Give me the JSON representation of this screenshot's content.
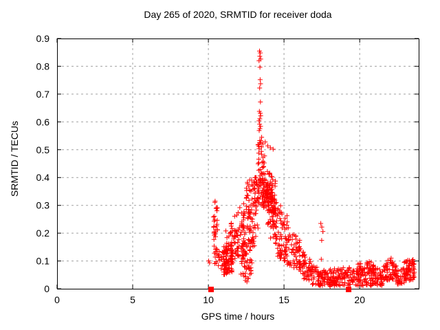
{
  "chart_data": {
    "type": "scatter",
    "title": "Day 265 of 2020, SRMTID for receiver doda",
    "xlabel": "GPS time / hours",
    "ylabel": "SRMTID / TECUs",
    "xlim": [
      0,
      23.9
    ],
    "ylim": [
      0,
      0.9
    ],
    "xticks": [
      0,
      5,
      10,
      15,
      20
    ],
    "xtick_labels": [
      "0",
      "5",
      "10",
      "15",
      "20"
    ],
    "yticks": [
      0,
      0.1,
      0.2,
      0.3,
      0.4,
      0.5,
      0.6,
      0.7,
      0.8,
      0.9
    ],
    "ytick_labels": [
      "0",
      "0.1",
      "0.2",
      "0.3",
      "0.4",
      "0.5",
      "0.6",
      "0.7",
      "0.8",
      "0.9"
    ],
    "grid": true,
    "grid_style": "dashed",
    "legend": "none",
    "marker": "plus",
    "marker_size": 7,
    "colors": {
      "points": "#ff0000",
      "grid": "#a0a0a0",
      "axis": "#000000",
      "background": "#ffffff"
    },
    "description": "Red plus-marker scatter: no data 0-10h; activity starts ~10.2h, dense band with peak column at ~13.4h reaching 0.855 TECUs, decaying to a low noise band 0.02-0.1 until ~23.6h. Filled red squares at zero at ~10.2h and ~19.3h.",
    "zero_markers": {
      "shape": "filled-square",
      "size": 8,
      "points": [
        [
          10.18,
          0
        ],
        [
          19.27,
          0
        ]
      ]
    },
    "points_explicit": [
      [
        10.02,
        0.1
      ],
      [
        10.08,
        0.093
      ],
      [
        13.38,
        0.855
      ],
      [
        13.43,
        0.848
      ],
      [
        13.4,
        0.836
      ],
      [
        13.46,
        0.826
      ],
      [
        13.35,
        0.82
      ],
      [
        13.41,
        0.797
      ],
      [
        13.42,
        0.752
      ],
      [
        13.45,
        0.737
      ],
      [
        13.39,
        0.722
      ],
      [
        13.44,
        0.672
      ],
      [
        13.37,
        0.638
      ],
      [
        13.43,
        0.631
      ],
      [
        13.46,
        0.622
      ],
      [
        13.4,
        0.611
      ],
      [
        13.35,
        0.604
      ],
      [
        13.39,
        0.592
      ],
      [
        13.45,
        0.584
      ],
      [
        13.41,
        0.576
      ],
      [
        13.36,
        0.569
      ],
      [
        13.52,
        0.545
      ],
      [
        13.48,
        0.532
      ],
      [
        13.6,
        0.521
      ],
      [
        13.33,
        0.512
      ],
      [
        13.76,
        0.528
      ],
      [
        13.92,
        0.514
      ],
      [
        14.1,
        0.507
      ],
      [
        14.28,
        0.502
      ],
      [
        12.45,
        0.03
      ],
      [
        12.55,
        0.025
      ],
      [
        12.62,
        0.038
      ],
      [
        17.43,
        0.235
      ],
      [
        17.5,
        0.222
      ],
      [
        17.57,
        0.206
      ],
      [
        17.49,
        0.174
      ],
      [
        17.46,
        0.106
      ]
    ],
    "prng_seed": 20,
    "clusters": [
      {
        "n": 26,
        "x": [
          10.32,
          10.62
        ],
        "bot": [
          0.15,
          0.155
        ],
        "top": [
          0.335,
          0.3
        ],
        "pow": 0.8
      },
      {
        "n": 26,
        "x": [
          10.35,
          11.05
        ],
        "bot": [
          0.082,
          0.06
        ],
        "top": [
          0.148,
          0.13
        ],
        "pow": 1
      },
      {
        "n": 95,
        "x": [
          11.0,
          11.6
        ],
        "bot": [
          0.05,
          0.06
        ],
        "top": [
          0.16,
          0.17
        ],
        "pow": 1.3
      },
      {
        "n": 12,
        "x": [
          11.1,
          11.6
        ],
        "bot": [
          0.15,
          0.17
        ],
        "top": [
          0.21,
          0.25
        ],
        "pow": 1
      },
      {
        "n": 55,
        "x": [
          11.55,
          12.35
        ],
        "bot": [
          0.09,
          0.12
        ],
        "top": [
          0.24,
          0.345
        ],
        "pow": 1.2
      },
      {
        "n": 30,
        "x": [
          12.15,
          12.9
        ],
        "bot": [
          0.05,
          0.03
        ],
        "top": [
          0.13,
          0.1
        ],
        "pow": 1.2
      },
      {
        "n": 95,
        "x": [
          12.2,
          13.3
        ],
        "bot": [
          0.1,
          0.16
        ],
        "top": [
          0.26,
          0.33
        ],
        "pow": 1
      },
      {
        "n": 48,
        "x": [
          12.5,
          13.35
        ],
        "bot": [
          0.27,
          0.32
        ],
        "top": [
          0.38,
          0.43
        ],
        "pow": 1
      },
      {
        "n": 55,
        "x": [
          13.28,
          13.72
        ],
        "bot": [
          0.3,
          0.3
        ],
        "top": [
          0.555,
          0.5
        ],
        "pow": 1.1
      },
      {
        "n": 85,
        "x": [
          13.55,
          14.45
        ],
        "bot": [
          0.295,
          0.27
        ],
        "top": [
          0.465,
          0.39
        ],
        "pow": 1.1
      },
      {
        "n": 40,
        "x": [
          13.8,
          14.25
        ],
        "bot": [
          0.315,
          0.31
        ],
        "top": [
          0.385,
          0.36
        ],
        "pow": 1
      },
      {
        "n": 38,
        "x": [
          13.9,
          14.55
        ],
        "bot": [
          0.175,
          0.16
        ],
        "top": [
          0.3,
          0.28
        ],
        "pow": 1
      },
      {
        "n": 55,
        "x": [
          14.45,
          15.25
        ],
        "bot": [
          0.115,
          0.1
        ],
        "top": [
          0.335,
          0.26
        ],
        "pow": 1.2
      },
      {
        "n": 70,
        "x": [
          15.0,
          16.05
        ],
        "bot": [
          0.09,
          0.065
        ],
        "top": [
          0.255,
          0.175
        ],
        "pow": 1.2
      },
      {
        "n": 55,
        "x": [
          16.0,
          16.85
        ],
        "bot": [
          0.04,
          0.028
        ],
        "top": [
          0.155,
          0.1
        ],
        "pow": 1.1
      },
      {
        "n": 70,
        "x": [
          16.8,
          18.05
        ],
        "bot": [
          0.013,
          0.008
        ],
        "top": [
          0.095,
          0.065
        ],
        "pow": 1
      },
      {
        "n": 90,
        "x": [
          18.0,
          19.32
        ],
        "bot": [
          0.008,
          0.008
        ],
        "top": [
          0.07,
          0.08
        ],
        "pow": 1
      },
      {
        "n": 125,
        "x": [
          19.3,
          21.55
        ],
        "bot": [
          0.008,
          0.012
        ],
        "top": [
          0.075,
          0.075
        ],
        "pow": 1
      },
      {
        "n": 18,
        "x": [
          19.8,
          20.15
        ],
        "bot": [
          0.05,
          0.05
        ],
        "top": [
          0.095,
          0.09
        ],
        "pow": 1
      },
      {
        "n": 20,
        "x": [
          20.45,
          21.0
        ],
        "bot": [
          0.05,
          0.05
        ],
        "top": [
          0.105,
          0.095
        ],
        "pow": 1
      },
      {
        "n": 35,
        "x": [
          21.55,
          22.1
        ],
        "bot": [
          0.02,
          0.035
        ],
        "top": [
          0.08,
          0.118
        ],
        "pow": 1
      },
      {
        "n": 30,
        "x": [
          22.1,
          22.45
        ],
        "bot": [
          0.03,
          0.025
        ],
        "top": [
          0.118,
          0.08
        ],
        "pow": 1
      },
      {
        "n": 28,
        "x": [
          22.45,
          22.95
        ],
        "bot": [
          0.015,
          0.02
        ],
        "top": [
          0.065,
          0.075
        ],
        "pow": 1
      },
      {
        "n": 70,
        "x": [
          22.9,
          23.62
        ],
        "bot": [
          0.02,
          0.03
        ],
        "top": [
          0.1,
          0.108
        ],
        "pow": 0.9
      }
    ]
  }
}
